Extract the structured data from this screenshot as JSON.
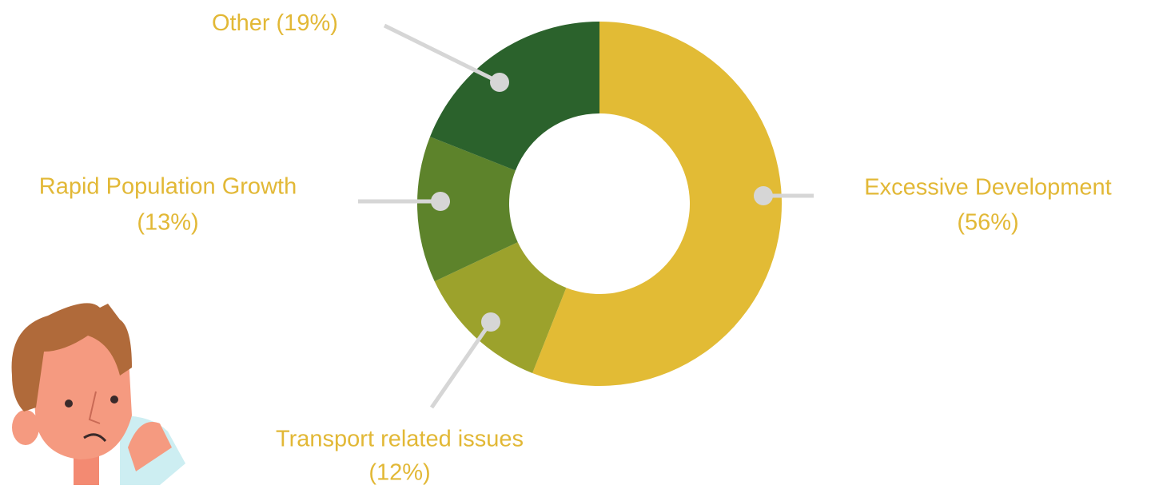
{
  "chart_data": {
    "type": "donut",
    "categories": [
      "Excessive Development",
      "Transport related issues",
      "Rapid Population Growth",
      "Other"
    ],
    "values": [
      56,
      12,
      13,
      19
    ],
    "value_labels": [
      "(56%)",
      "(12%)",
      "(13%)",
      "(19%)"
    ],
    "colors": [
      "#e2bb35",
      "#9ca22c",
      "#5d832b",
      "#2b622c"
    ],
    "label_color": "#e2b836"
  }
}
